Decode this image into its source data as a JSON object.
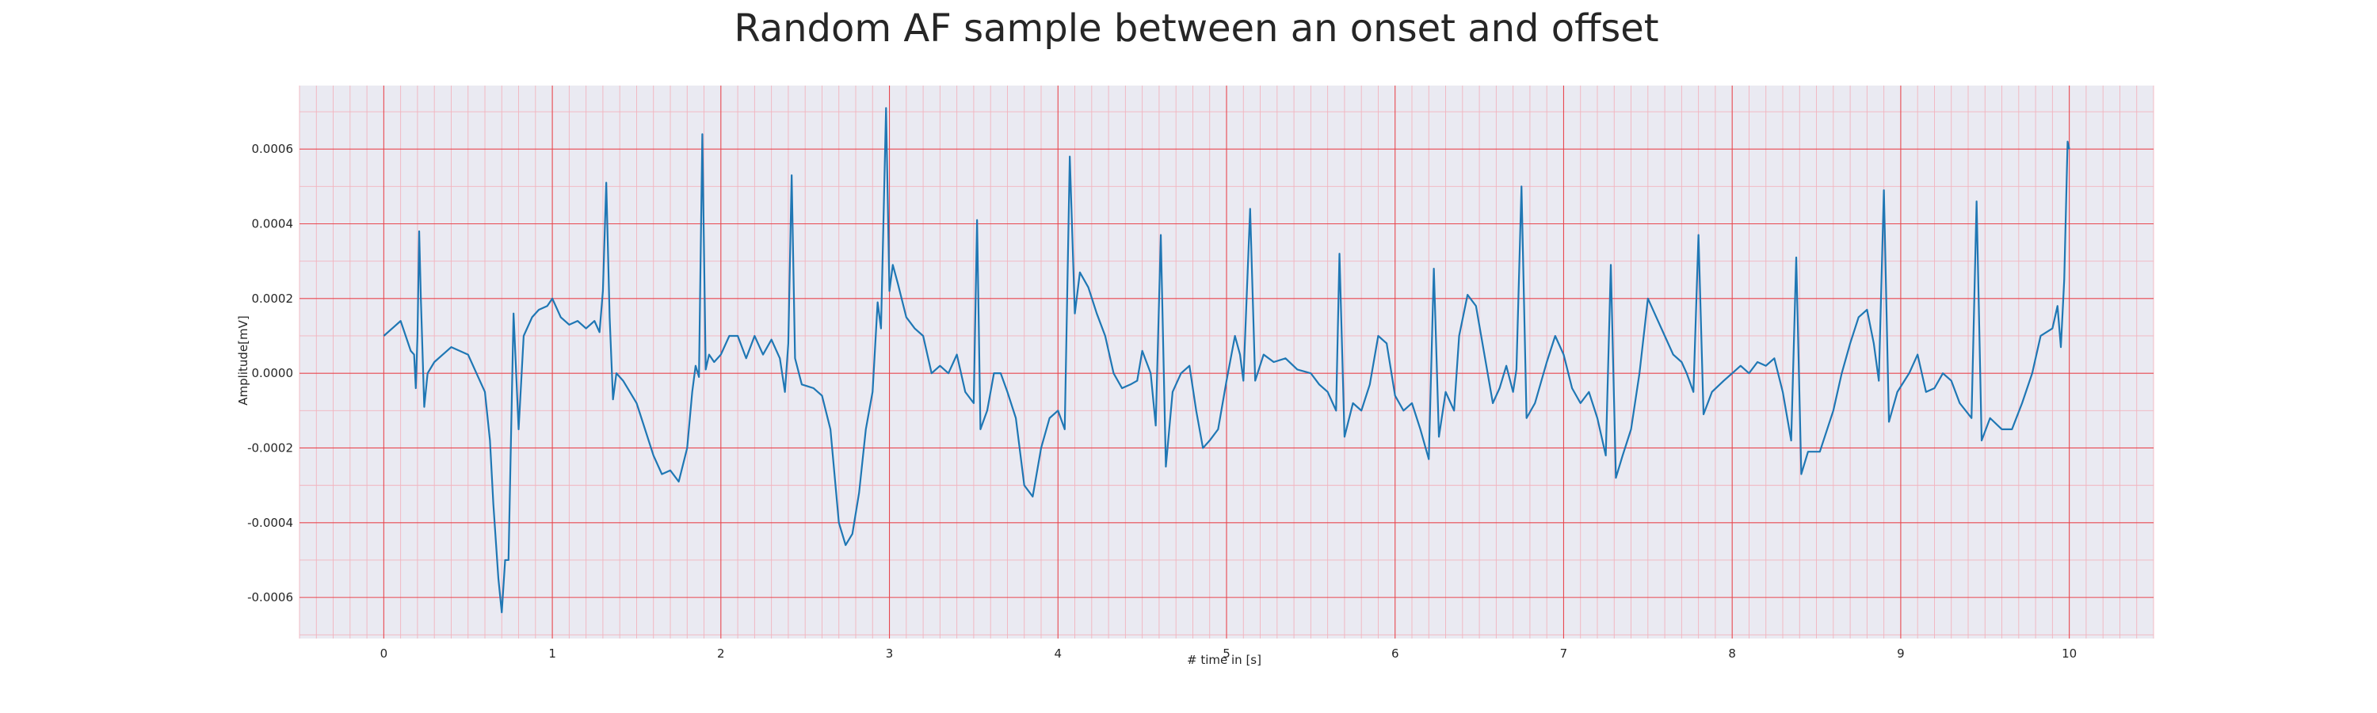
{
  "chart_data": {
    "type": "line",
    "title": "Random AF sample between an onset and offset",
    "xlabel": "# time in [s]",
    "ylabel": "Amplitude[mV]",
    "xlim": [
      -0.5,
      10.5
    ],
    "ylim": [
      -0.00071,
      0.00077
    ],
    "x_ticks": [
      0,
      1,
      2,
      3,
      4,
      5,
      6,
      7,
      8,
      9,
      10
    ],
    "x_tick_labels": [
      "0",
      "1",
      "2",
      "3",
      "4",
      "5",
      "6",
      "7",
      "8",
      "9",
      "10"
    ],
    "y_ticks": [
      -0.0006,
      -0.0004,
      -0.0002,
      0.0,
      0.0002,
      0.0004,
      0.0006
    ],
    "y_tick_labels": [
      "-0.0006",
      "-0.0004",
      "-0.0002",
      "0.0000",
      "0.0002",
      "0.0004",
      "0.0006"
    ],
    "grid": true,
    "minor_grid": true,
    "background_color": "#eaeaf2",
    "major_grid_color": "#e8474f",
    "minor_grid_color": "#f2b4be",
    "series": [
      {
        "color": "#1f77b4",
        "points": [
          [
            0.0,
            0.0001
          ],
          [
            0.05,
            0.00012
          ],
          [
            0.1,
            0.00014
          ],
          [
            0.13,
            0.0001
          ],
          [
            0.16,
            6e-05
          ],
          [
            0.18,
            5e-05
          ],
          [
            0.19,
            -4e-05
          ],
          [
            0.2,
            0.0001
          ],
          [
            0.21,
            0.00038
          ],
          [
            0.22,
            0.0002
          ],
          [
            0.24,
            -9e-05
          ],
          [
            0.26,
            0.0
          ],
          [
            0.3,
            3e-05
          ],
          [
            0.35,
            5e-05
          ],
          [
            0.4,
            7e-05
          ],
          [
            0.45,
            6e-05
          ],
          [
            0.5,
            5e-05
          ],
          [
            0.55,
            0.0
          ],
          [
            0.6,
            -5e-05
          ],
          [
            0.63,
            -0.00018
          ],
          [
            0.65,
            -0.00035
          ],
          [
            0.68,
            -0.00055
          ],
          [
            0.7,
            -0.00064
          ],
          [
            0.72,
            -0.0005
          ],
          [
            0.74,
            -0.0005
          ],
          [
            0.77,
            0.00016
          ],
          [
            0.8,
            -0.00015
          ],
          [
            0.83,
            0.0001
          ],
          [
            0.88,
            0.00015
          ],
          [
            0.92,
            0.00017
          ],
          [
            0.97,
            0.00018
          ],
          [
            1.0,
            0.0002
          ],
          [
            1.05,
            0.00015
          ],
          [
            1.1,
            0.00013
          ],
          [
            1.15,
            0.00014
          ],
          [
            1.2,
            0.00012
          ],
          [
            1.25,
            0.00014
          ],
          [
            1.28,
            0.00011
          ],
          [
            1.3,
            0.00022
          ],
          [
            1.32,
            0.00051
          ],
          [
            1.34,
            0.00015
          ],
          [
            1.36,
            -7e-05
          ],
          [
            1.38,
            0.0
          ],
          [
            1.42,
            -2e-05
          ],
          [
            1.46,
            -5e-05
          ],
          [
            1.5,
            -8e-05
          ],
          [
            1.55,
            -0.00015
          ],
          [
            1.6,
            -0.00022
          ],
          [
            1.65,
            -0.00027
          ],
          [
            1.7,
            -0.00026
          ],
          [
            1.75,
            -0.00029
          ],
          [
            1.8,
            -0.0002
          ],
          [
            1.83,
            -5e-05
          ],
          [
            1.85,
            2e-05
          ],
          [
            1.87,
            -1e-05
          ],
          [
            1.89,
            0.00064
          ],
          [
            1.91,
            1e-05
          ],
          [
            1.93,
            5e-05
          ],
          [
            1.96,
            3e-05
          ],
          [
            2.0,
            5e-05
          ],
          [
            2.05,
            0.0001
          ],
          [
            2.1,
            0.0001
          ],
          [
            2.15,
            4e-05
          ],
          [
            2.2,
            0.0001
          ],
          [
            2.25,
            5e-05
          ],
          [
            2.3,
            9e-05
          ],
          [
            2.35,
            4e-05
          ],
          [
            2.38,
            -5e-05
          ],
          [
            2.4,
            8e-05
          ],
          [
            2.42,
            0.00053
          ],
          [
            2.44,
            4e-05
          ],
          [
            2.48,
            -3e-05
          ],
          [
            2.55,
            -4e-05
          ],
          [
            2.6,
            -6e-05
          ],
          [
            2.65,
            -0.00015
          ],
          [
            2.7,
            -0.0004
          ],
          [
            2.74,
            -0.00046
          ],
          [
            2.78,
            -0.00043
          ],
          [
            2.82,
            -0.00032
          ],
          [
            2.86,
            -0.00015
          ],
          [
            2.9,
            -5e-05
          ],
          [
            2.93,
            0.00019
          ],
          [
            2.95,
            0.00012
          ],
          [
            2.98,
            0.00071
          ],
          [
            3.0,
            0.00022
          ],
          [
            3.02,
            0.00029
          ],
          [
            3.05,
            0.00024
          ],
          [
            3.1,
            0.00015
          ],
          [
            3.15,
            0.00012
          ],
          [
            3.2,
            0.0001
          ],
          [
            3.25,
            0.0
          ],
          [
            3.3,
            2e-05
          ],
          [
            3.35,
            0.0
          ],
          [
            3.4,
            5e-05
          ],
          [
            3.45,
            -5e-05
          ],
          [
            3.5,
            -8e-05
          ],
          [
            3.52,
            0.00041
          ],
          [
            3.54,
            -0.00015
          ],
          [
            3.58,
            -0.0001
          ],
          [
            3.62,
            0.0
          ],
          [
            3.66,
            0.0
          ],
          [
            3.7,
            -5e-05
          ],
          [
            3.75,
            -0.00012
          ],
          [
            3.8,
            -0.0003
          ],
          [
            3.85,
            -0.00033
          ],
          [
            3.9,
            -0.0002
          ],
          [
            3.95,
            -0.00012
          ],
          [
            4.0,
            -0.0001
          ],
          [
            4.04,
            -0.00015
          ],
          [
            4.07,
            0.00058
          ],
          [
            4.1,
            0.00016
          ],
          [
            4.13,
            0.00027
          ],
          [
            4.18,
            0.00023
          ],
          [
            4.23,
            0.00016
          ],
          [
            4.28,
            0.0001
          ],
          [
            4.33,
            0.0
          ],
          [
            4.38,
            -4e-05
          ],
          [
            4.43,
            -3e-05
          ],
          [
            4.47,
            -2e-05
          ],
          [
            4.5,
            6e-05
          ],
          [
            4.55,
            0.0
          ],
          [
            4.58,
            -0.00014
          ],
          [
            4.61,
            0.00037
          ],
          [
            4.64,
            -0.00025
          ],
          [
            4.68,
            -5e-05
          ],
          [
            4.73,
            0.0
          ],
          [
            4.78,
            2e-05
          ],
          [
            4.82,
            -0.0001
          ],
          [
            4.86,
            -0.0002
          ],
          [
            4.9,
            -0.00018
          ],
          [
            4.95,
            -0.00015
          ],
          [
            5.0,
            -2e-05
          ],
          [
            5.05,
            0.0001
          ],
          [
            5.08,
            5e-05
          ],
          [
            5.1,
            -2e-05
          ],
          [
            5.14,
            0.00044
          ],
          [
            5.17,
            -2e-05
          ],
          [
            5.22,
            5e-05
          ],
          [
            5.28,
            3e-05
          ],
          [
            5.35,
            4e-05
          ],
          [
            5.42,
            1e-05
          ],
          [
            5.5,
            0.0
          ],
          [
            5.55,
            -3e-05
          ],
          [
            5.6,
            -5e-05
          ],
          [
            5.65,
            -0.0001
          ],
          [
            5.67,
            0.00032
          ],
          [
            5.7,
            -0.00017
          ],
          [
            5.75,
            -8e-05
          ],
          [
            5.8,
            -0.0001
          ],
          [
            5.85,
            -3e-05
          ],
          [
            5.9,
            0.0001
          ],
          [
            5.95,
            8e-05
          ],
          [
            6.0,
            -6e-05
          ],
          [
            6.05,
            -0.0001
          ],
          [
            6.1,
            -8e-05
          ],
          [
            6.15,
            -0.00015
          ],
          [
            6.2,
            -0.00023
          ],
          [
            6.23,
            0.00028
          ],
          [
            6.26,
            -0.00017
          ],
          [
            6.3,
            -5e-05
          ],
          [
            6.35,
            -0.0001
          ],
          [
            6.38,
            0.0001
          ],
          [
            6.43,
            0.00021
          ],
          [
            6.48,
            0.00018
          ],
          [
            6.53,
            5e-05
          ],
          [
            6.58,
            -8e-05
          ],
          [
            6.62,
            -4e-05
          ],
          [
            6.66,
            2e-05
          ],
          [
            6.7,
            -5e-05
          ],
          [
            6.72,
            1e-05
          ],
          [
            6.75,
            0.0005
          ],
          [
            6.78,
            -0.00012
          ],
          [
            6.83,
            -8e-05
          ],
          [
            6.9,
            3e-05
          ],
          [
            6.95,
            0.0001
          ],
          [
            7.0,
            5e-05
          ],
          [
            7.05,
            -4e-05
          ],
          [
            7.1,
            -8e-05
          ],
          [
            7.15,
            -5e-05
          ],
          [
            7.2,
            -0.00012
          ],
          [
            7.25,
            -0.00022
          ],
          [
            7.28,
            0.00029
          ],
          [
            7.31,
            -0.00028
          ],
          [
            7.35,
            -0.00022
          ],
          [
            7.4,
            -0.00015
          ],
          [
            7.45,
            0.0
          ],
          [
            7.5,
            0.0002
          ],
          [
            7.55,
            0.00015
          ],
          [
            7.6,
            0.0001
          ],
          [
            7.65,
            5e-05
          ],
          [
            7.7,
            3e-05
          ],
          [
            7.73,
            0.0
          ],
          [
            7.77,
            -5e-05
          ],
          [
            7.8,
            0.00037
          ],
          [
            7.83,
            -0.00011
          ],
          [
            7.88,
            -5e-05
          ],
          [
            7.95,
            -2e-05
          ],
          [
            8.0,
            0.0
          ],
          [
            8.05,
            2e-05
          ],
          [
            8.1,
            0.0
          ],
          [
            8.15,
            3e-05
          ],
          [
            8.2,
            2e-05
          ],
          [
            8.25,
            4e-05
          ],
          [
            8.3,
            -5e-05
          ],
          [
            8.35,
            -0.00018
          ],
          [
            8.38,
            0.00031
          ],
          [
            8.41,
            -0.00027
          ],
          [
            8.45,
            -0.00021
          ],
          [
            8.52,
            -0.00021
          ],
          [
            8.6,
            -0.0001
          ],
          [
            8.65,
            0.0
          ],
          [
            8.7,
            8e-05
          ],
          [
            8.75,
            0.00015
          ],
          [
            8.8,
            0.00017
          ],
          [
            8.84,
            8e-05
          ],
          [
            8.87,
            -2e-05
          ],
          [
            8.9,
            0.00049
          ],
          [
            8.93,
            -0.00013
          ],
          [
            8.98,
            -5e-05
          ],
          [
            9.05,
            0.0
          ],
          [
            9.1,
            5e-05
          ],
          [
            9.15,
            -5e-05
          ],
          [
            9.2,
            -4e-05
          ],
          [
            9.25,
            0.0
          ],
          [
            9.3,
            -2e-05
          ],
          [
            9.35,
            -8e-05
          ],
          [
            9.42,
            -0.00012
          ],
          [
            9.45,
            0.00046
          ],
          [
            9.48,
            -0.00018
          ],
          [
            9.53,
            -0.00012
          ],
          [
            9.6,
            -0.00015
          ],
          [
            9.66,
            -0.00015
          ],
          [
            9.72,
            -8e-05
          ],
          [
            9.78,
            0.0
          ],
          [
            9.83,
            0.0001
          ],
          [
            9.9,
            0.00012
          ],
          [
            9.93,
            0.00018
          ],
          [
            9.95,
            7e-05
          ],
          [
            9.97,
            0.00025
          ],
          [
            9.99,
            0.00062
          ],
          [
            10.0,
            0.0006
          ]
        ]
      }
    ]
  }
}
